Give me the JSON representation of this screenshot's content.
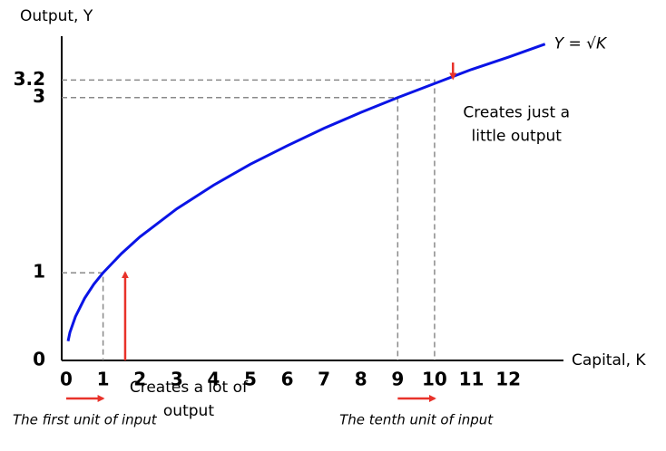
{
  "chart_data": {
    "type": "line",
    "x_label": "Capital, K",
    "y_label": "Output, Y",
    "x": [
      0.05,
      0.1,
      0.25,
      0.5,
      0.75,
      1,
      1.5,
      2,
      3,
      4,
      5,
      6,
      7,
      8,
      9,
      10,
      11,
      12,
      13
    ],
    "series": [
      {
        "name": "Y = √K",
        "color": "#0a14e6",
        "values": [
          0.22,
          0.32,
          0.5,
          0.71,
          0.87,
          1,
          1.22,
          1.41,
          1.73,
          2,
          2.24,
          2.45,
          2.65,
          2.83,
          3,
          3.16,
          3.32,
          3.46,
          3.61
        ]
      }
    ],
    "xlim": [
      0,
      13.5
    ],
    "ylim": [
      0,
      3.7
    ],
    "xticks": [
      0,
      1,
      2,
      3,
      4,
      5,
      6,
      7,
      8,
      9,
      10,
      11,
      12
    ],
    "yticks": [
      0,
      1,
      3,
      3.2
    ],
    "guides": [
      {
        "x": 1,
        "y": 1
      },
      {
        "x": 9,
        "y": 3
      },
      {
        "x": 10,
        "y": 3.2
      }
    ],
    "input_arrows": [
      {
        "from": 0,
        "to": 1,
        "label": "The first unit of input"
      },
      {
        "from": 9,
        "to": 10,
        "label": "The tenth unit of input"
      }
    ],
    "annotations": [
      {
        "x": 1.6,
        "from": 0,
        "to": 1,
        "lines": [
          "Creates a lot of",
          "output"
        ]
      },
      {
        "x": 10.5,
        "from": 3.4,
        "to": 3.22,
        "lines": [
          "Creates just a",
          "little output"
        ]
      }
    ],
    "arrow_color": "#e8322a",
    "guide_color": "#8a8a8a"
  }
}
